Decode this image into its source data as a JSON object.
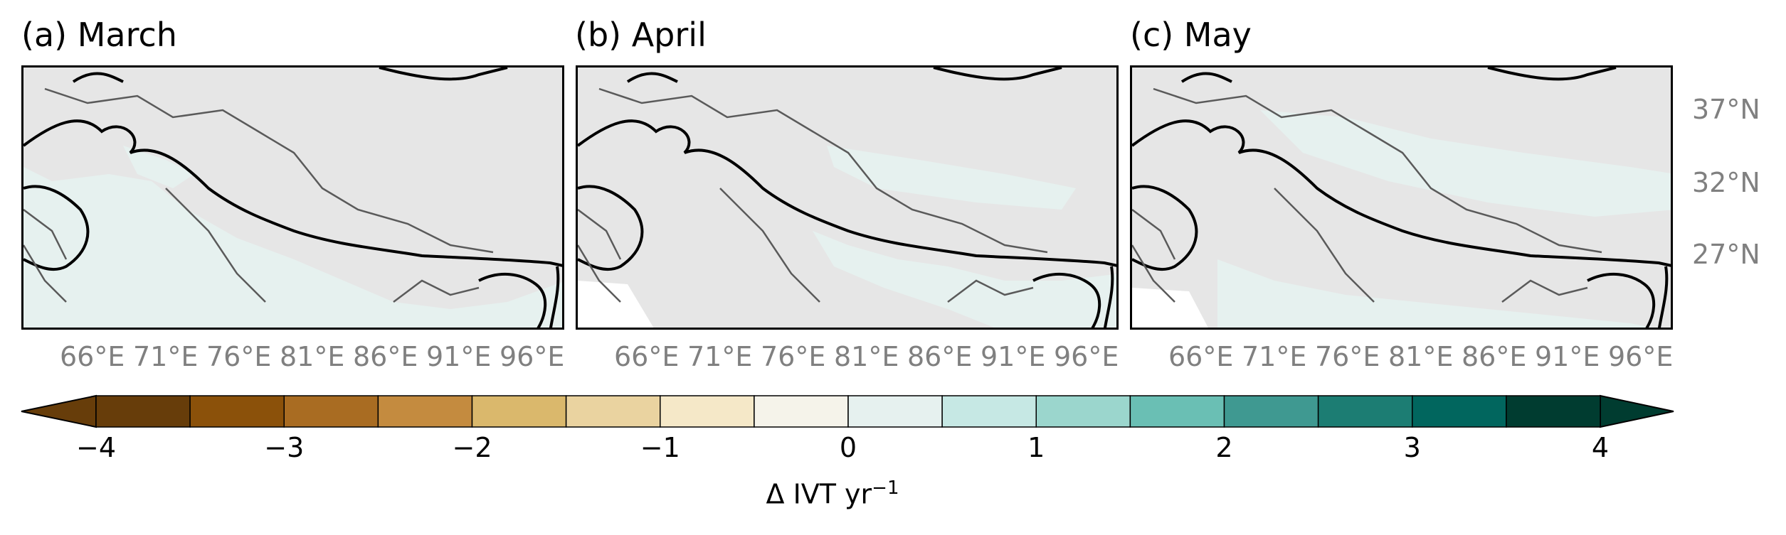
{
  "panels": [
    {
      "title": "(a) March",
      "lon_ticks": [
        "66°E",
        "71°E",
        "76°E",
        "81°E",
        "86°E",
        "91°E",
        "96°E"
      ]
    },
    {
      "title": "(b) April",
      "lon_ticks": [
        "66°E",
        "71°E",
        "76°E",
        "81°E",
        "86°E",
        "91°E",
        "96°E"
      ]
    },
    {
      "title": "(c) May",
      "lon_ticks": [
        "66°E",
        "71°E",
        "76°E",
        "81°E",
        "86°E",
        "91°E",
        "96°E"
      ]
    }
  ],
  "lat_ticks": [
    "37°N",
    "32°N",
    "27°N"
  ],
  "colorbar": {
    "ticks": [
      "−4",
      "−3",
      "−2",
      "−1",
      "0",
      "1",
      "2",
      "3",
      "4"
    ],
    "label_main": "Δ IVT yr",
    "label_exp": "−1",
    "colors": [
      "#673d0a",
      "#8b510a",
      "#a96c22",
      "#c48b3f",
      "#dab86c",
      "#ead3a0",
      "#f5e8c8",
      "#f5f3ea",
      "#e6f1ef",
      "#c6e8e4",
      "#9bd6cd",
      "#6abfb4",
      "#3f9991",
      "#1c7d73",
      "#01665e",
      "#003c30"
    ],
    "extend": "both"
  },
  "map": {
    "land_color": "#e5e5e5",
    "positive_small_color": "#e6f1ef",
    "missing_color": "#ffffff",
    "coast_color": "#000000",
    "border_color": "#5a5a5a"
  }
}
